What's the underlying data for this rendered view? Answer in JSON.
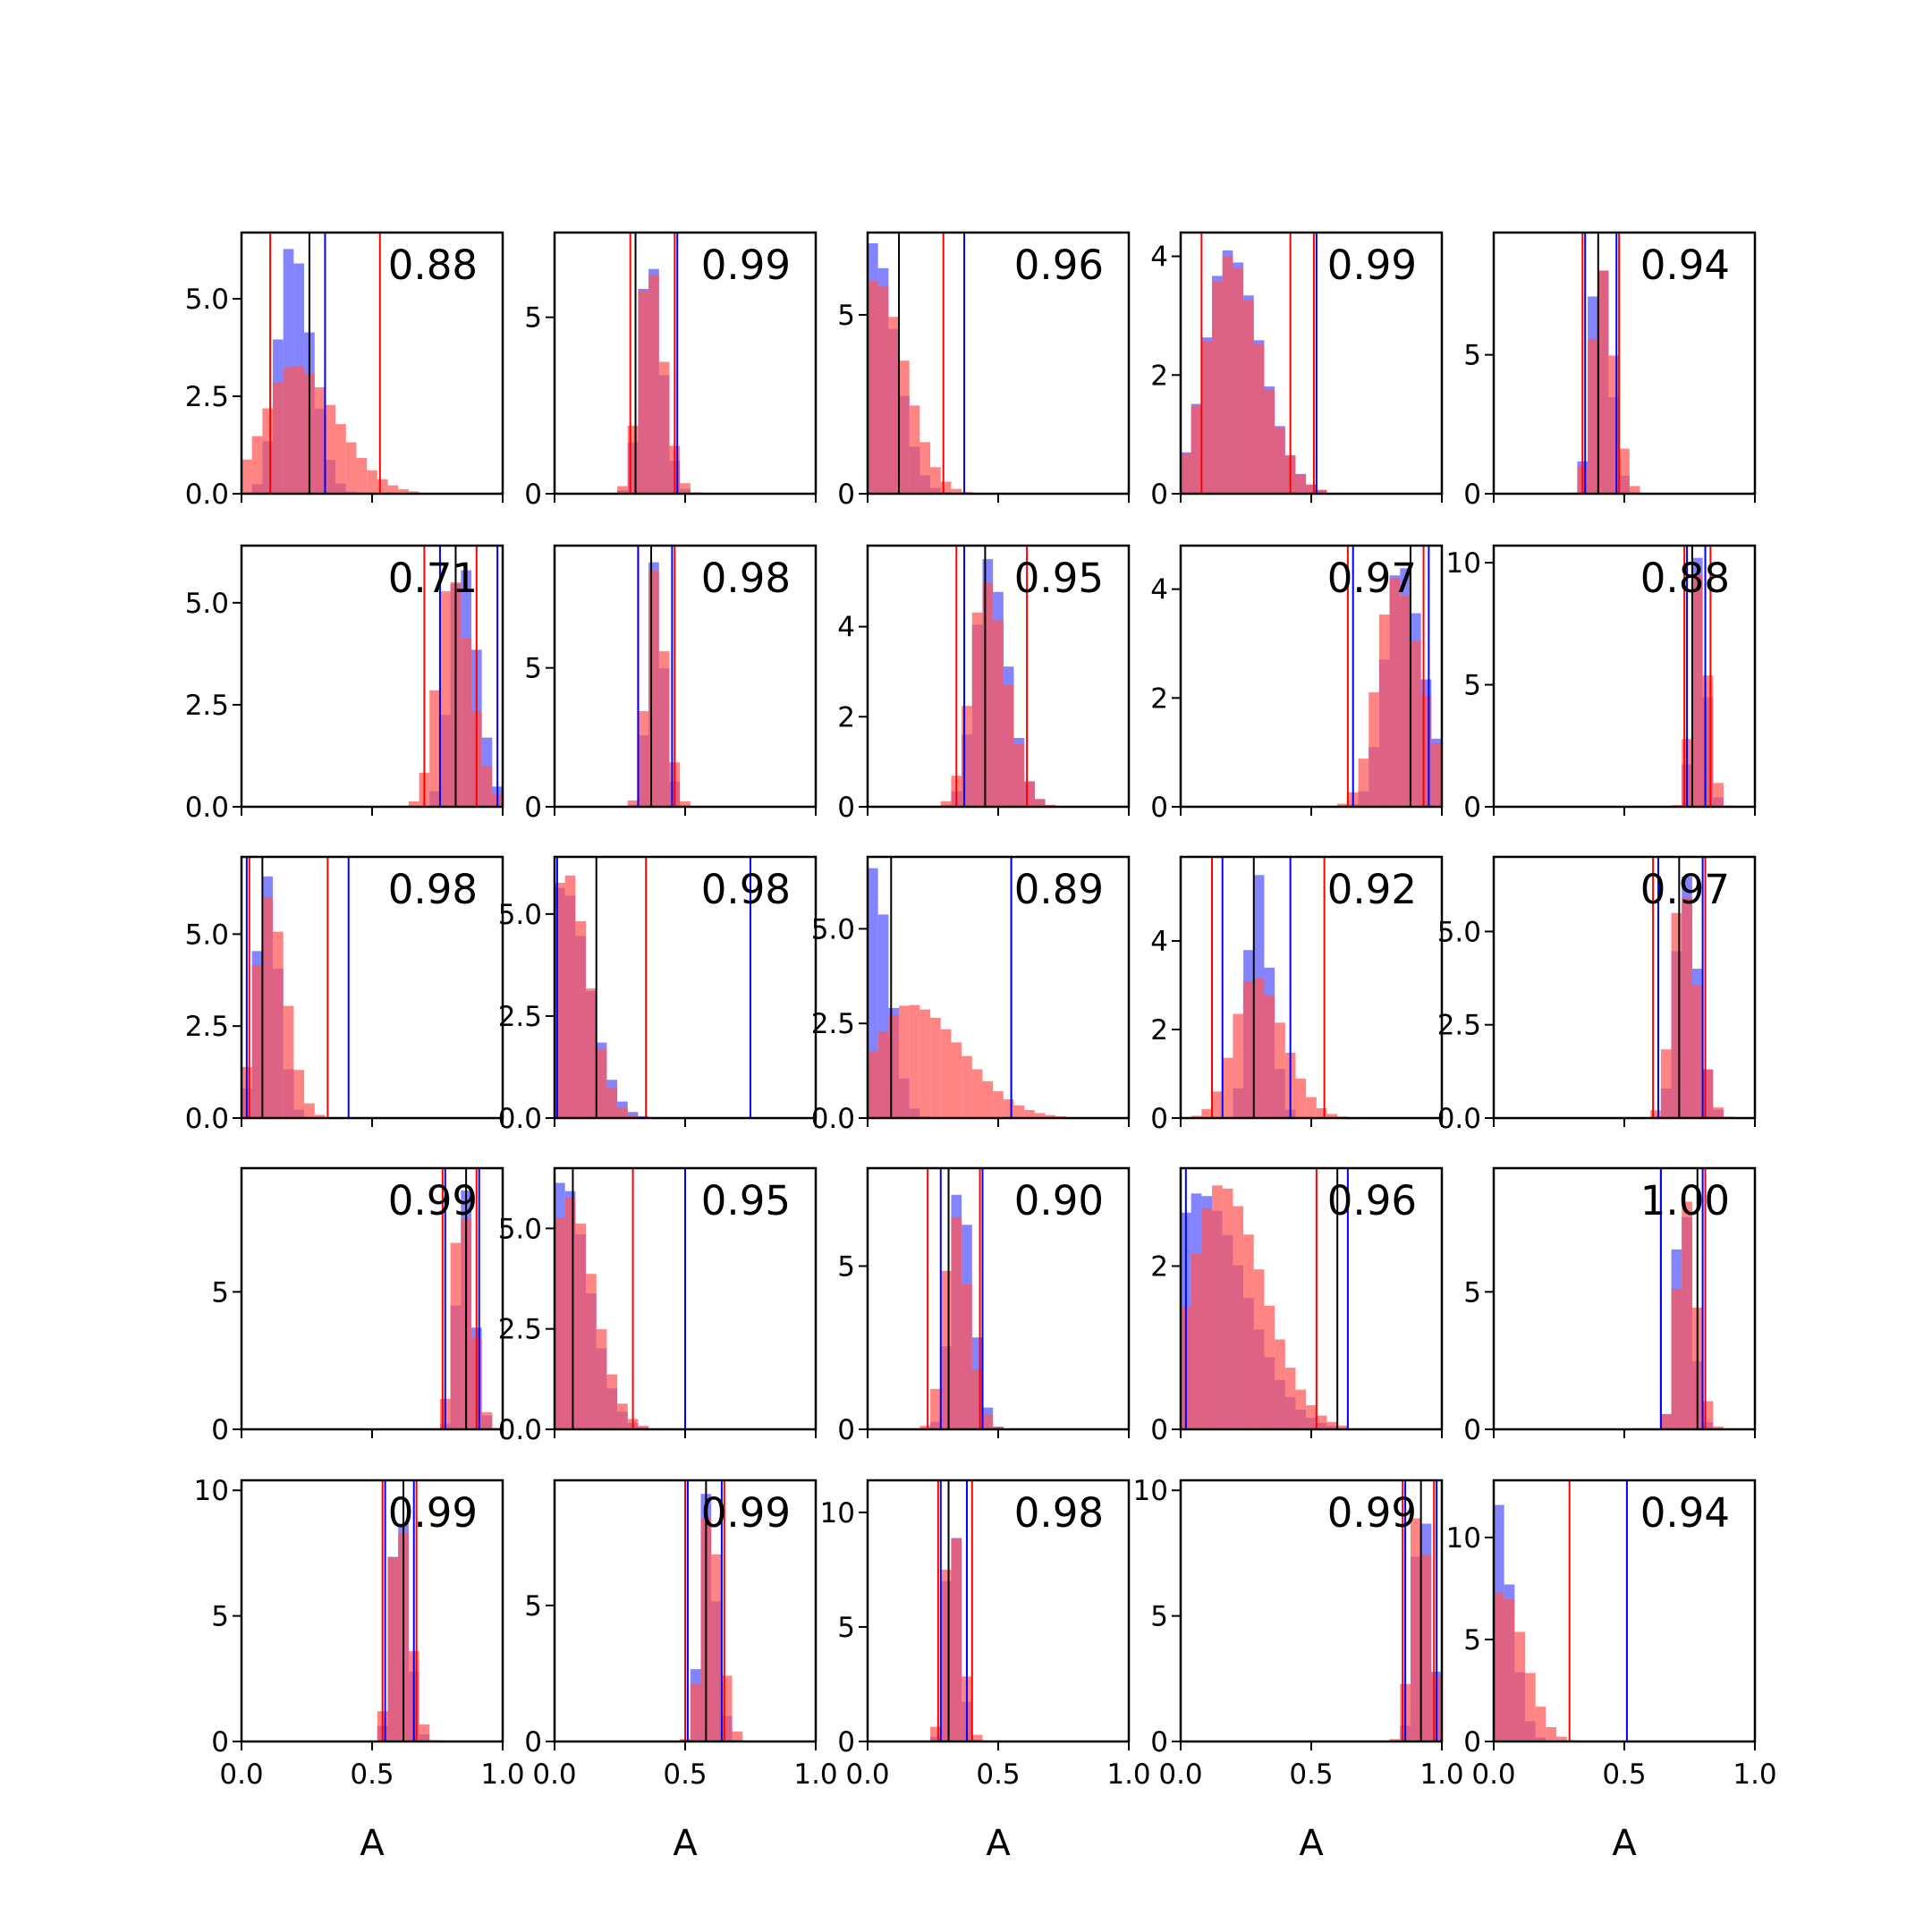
{
  "chart_data": {
    "type": "histogram-grid",
    "rows": 5,
    "cols": 5,
    "xlabel": "A",
    "xlim": [
      0,
      1
    ],
    "xticks": [
      0.0,
      0.5,
      1.0
    ],
    "xtick_labels": [
      "0.0",
      "0.5",
      "1.0"
    ],
    "colors": {
      "blue": "#5555ff",
      "red": "#ff5555",
      "blue_line": "#0000ff",
      "red_line": "#ff0000",
      "black_line": "#000000"
    },
    "series_legend": [],
    "panels": [
      {
        "r": "0.88",
        "ymax": 6.7,
        "yticks": [
          0,
          2.5,
          5.0
        ],
        "ytick_labels": [
          "0.0",
          "2.5",
          "5.0"
        ],
        "blue": {
          "mode": 0.19,
          "width": 0.06,
          "peak": 6.4
        },
        "red": {
          "mode": 0.2,
          "width": 0.13,
          "peak": 3.3
        },
        "red_lines": [
          0.11,
          0.53
        ],
        "blue_lines": [
          0.32
        ],
        "black_line": 0.26
      },
      {
        "r": "0.99",
        "ymax": 7.4,
        "yticks": [
          0,
          5
        ],
        "ytick_labels": [
          "0",
          "5"
        ],
        "blue": {
          "mode": 0.36,
          "width": 0.04,
          "peak": 6.9
        },
        "red": {
          "mode": 0.36,
          "width": 0.045,
          "peak": 6.6
        },
        "red_lines": [
          0.29,
          0.46
        ],
        "blue_lines": [
          0.47
        ],
        "black_line": 0.31
      },
      {
        "r": "0.96",
        "ymax": 7.3,
        "yticks": [
          0,
          5
        ],
        "ytick_labels": [
          "0",
          "5"
        ],
        "blue": {
          "mode": 0.02,
          "width": 0.07,
          "peak": 7.0
        },
        "red": {
          "mode": 0.03,
          "width": 0.09,
          "peak": 6.0
        },
        "red_lines": [
          0.29
        ],
        "blue_lines": [
          0.37
        ],
        "black_line": 0.12
      },
      {
        "r": "0.99",
        "ymax": 4.4,
        "yticks": [
          0,
          2,
          4
        ],
        "ytick_labels": [
          "0",
          "2",
          "4"
        ],
        "blue": {
          "mode": 0.18,
          "width": 0.1,
          "peak": 4.1
        },
        "red": {
          "mode": 0.18,
          "width": 0.1,
          "peak": 4.0
        },
        "red_lines": [
          0.08,
          0.42,
          0.51
        ],
        "blue_lines": [
          0.52
        ],
        "black_line": null
      },
      {
        "r": "0.94",
        "ymax": 9.4,
        "yticks": [
          0,
          5
        ],
        "ytick_labels": [
          "0",
          "5"
        ],
        "blue": {
          "mode": 0.4,
          "width": 0.035,
          "peak": 8.9
        },
        "red": {
          "mode": 0.41,
          "width": 0.04,
          "peak": 8.2
        },
        "red_lines": [
          0.34,
          0.48
        ],
        "blue_lines": [
          0.35,
          0.47
        ],
        "black_line": 0.4
      },
      {
        "r": "0.71",
        "ymax": 6.4,
        "yticks": [
          0,
          2.5,
          5.0
        ],
        "ytick_labels": [
          "0.0",
          "2.5",
          "5.0"
        ],
        "blue": {
          "mode": 0.84,
          "width": 0.05,
          "peak": 6.1
        },
        "red": {
          "mode": 0.8,
          "width": 0.06,
          "peak": 5.7
        },
        "red_lines": [
          0.7,
          0.9
        ],
        "blue_lines": [
          0.76,
          0.98
        ],
        "black_line": 0.82
      },
      {
        "r": "0.98",
        "ymax": 9.4,
        "yticks": [
          0,
          5
        ],
        "ytick_labels": [
          "0",
          "5"
        ],
        "blue": {
          "mode": 0.38,
          "width": 0.03,
          "peak": 8.8
        },
        "red": {
          "mode": 0.38,
          "width": 0.035,
          "peak": 8.5
        },
        "red_lines": [
          0.32,
          0.46
        ],
        "blue_lines": [
          0.32,
          0.45
        ],
        "black_line": 0.37
      },
      {
        "r": "0.95",
        "ymax": 5.8,
        "yticks": [
          0,
          2,
          4
        ],
        "ytick_labels": [
          "0",
          "2",
          "4"
        ],
        "blue": {
          "mode": 0.46,
          "width": 0.06,
          "peak": 5.5
        },
        "red": {
          "mode": 0.45,
          "width": 0.065,
          "peak": 5.0
        },
        "red_lines": [
          0.34,
          0.61
        ],
        "blue_lines": [
          0.37
        ],
        "black_line": 0.45
      },
      {
        "r": "0.97",
        "ymax": 4.8,
        "yticks": [
          0,
          2,
          4
        ],
        "ytick_labels": [
          "0",
          "2",
          "4"
        ],
        "blue": {
          "mode": 0.84,
          "width": 0.07,
          "peak": 4.5
        },
        "red": {
          "mode": 0.82,
          "width": 0.08,
          "peak": 4.2
        },
        "red_lines": [
          0.64,
          0.93
        ],
        "blue_lines": [
          0.66,
          0.95
        ],
        "black_line": 0.88
      },
      {
        "r": "0.88",
        "ymax": 10.7,
        "yticks": [
          0,
          5,
          10
        ],
        "ytick_labels": [
          "0",
          "5",
          "10"
        ],
        "blue": {
          "mode": 0.78,
          "width": 0.025,
          "peak": 10.2
        },
        "red": {
          "mode": 0.78,
          "width": 0.03,
          "peak": 9.5
        },
        "red_lines": [
          0.73,
          0.83
        ],
        "blue_lines": [
          0.74,
          0.81
        ],
        "black_line": 0.76
      },
      {
        "r": "0.98",
        "ymax": 7.1,
        "yticks": [
          0,
          2.5,
          5.0
        ],
        "ytick_labels": [
          "0.0",
          "2.5",
          "5.0"
        ],
        "blue": {
          "mode": 0.09,
          "width": 0.04,
          "peak": 6.7
        },
        "red": {
          "mode": 0.1,
          "width": 0.055,
          "peak": 6.0
        },
        "red_lines": [
          0.03,
          0.33
        ],
        "blue_lines": [
          0.02,
          0.41
        ],
        "black_line": 0.08
      },
      {
        "r": "0.98",
        "ymax": 6.4,
        "yticks": [
          0,
          2.5,
          5.0
        ],
        "ytick_labels": [
          "0.0",
          "2.5",
          "5.0"
        ],
        "blue": {
          "mode": 0.03,
          "width": 0.08,
          "peak": 5.7
        },
        "red": {
          "mode": 0.04,
          "width": 0.07,
          "peak": 6.1
        },
        "red_lines": [
          0.35
        ],
        "blue_lines": [
          0.01,
          0.75
        ],
        "black_line": 0.16
      },
      {
        "r": "0.89",
        "ymax": 6.9,
        "yticks": [
          0,
          2.5,
          5.0
        ],
        "ytick_labels": [
          "0.0",
          "2.5",
          "5.0"
        ],
        "blue": {
          "mode": 0.02,
          "width": 0.05,
          "peak": 6.6
        },
        "red": {
          "mode": 0.16,
          "width": 0.16,
          "peak": 3.0
        },
        "red_lines": [
          0.55
        ],
        "blue_lines": [
          0.55
        ],
        "black_line": 0.09
      },
      {
        "r": "0.92",
        "ymax": 5.9,
        "yticks": [
          0,
          2,
          4
        ],
        "ytick_labels": [
          "0",
          "2",
          "4"
        ],
        "blue": {
          "mode": 0.29,
          "width": 0.04,
          "peak": 5.6
        },
        "red": {
          "mode": 0.28,
          "width": 0.09,
          "peak": 3.2
        },
        "red_lines": [
          0.12,
          0.55
        ],
        "blue_lines": [
          0.16,
          0.42
        ],
        "black_line": 0.28
      },
      {
        "r": "0.97",
        "ymax": 7.0,
        "yticks": [
          0,
          2.5,
          5.0
        ],
        "ytick_labels": [
          "0.0",
          "2.5",
          "5.0"
        ],
        "blue": {
          "mode": 0.73,
          "width": 0.04,
          "peak": 6.6
        },
        "red": {
          "mode": 0.72,
          "width": 0.045,
          "peak": 6.3
        },
        "red_lines": [
          0.61,
          0.81
        ],
        "blue_lines": [
          0.63,
          0.8
        ],
        "black_line": 0.71
      },
      {
        "r": "0.99",
        "ymax": 9.5,
        "yticks": [
          0,
          5
        ],
        "ytick_labels": [
          "0",
          "5"
        ],
        "blue": {
          "mode": 0.85,
          "width": 0.03,
          "peak": 9.0
        },
        "red": {
          "mode": 0.84,
          "width": 0.035,
          "peak": 8.5
        },
        "red_lines": [
          0.77,
          0.9
        ],
        "blue_lines": [
          0.78,
          0.91
        ],
        "black_line": 0.86
      },
      {
        "r": "0.95",
        "ymax": 6.5,
        "yticks": [
          0,
          2.5,
          5.0
        ],
        "ytick_labels": [
          "0.0",
          "2.5",
          "5.0"
        ],
        "blue": {
          "mode": 0.03,
          "width": 0.08,
          "peak": 6.2
        },
        "red": {
          "mode": 0.05,
          "width": 0.08,
          "peak": 5.8
        },
        "red_lines": [
          0.3
        ],
        "blue_lines": [
          0.5
        ],
        "black_line": 0.07
      },
      {
        "r": "0.90",
        "ymax": 8.0,
        "yticks": [
          0,
          5
        ],
        "ytick_labels": [
          "0",
          "5"
        ],
        "blue": {
          "mode": 0.35,
          "width": 0.04,
          "peak": 7.5
        },
        "red": {
          "mode": 0.33,
          "width": 0.045,
          "peak": 6.6
        },
        "red_lines": [
          0.23,
          0.43
        ],
        "blue_lines": [
          0.28,
          0.44
        ],
        "black_line": 0.31
      },
      {
        "r": "0.96",
        "ymax": 3.2,
        "yticks": [
          0,
          2
        ],
        "ytick_labels": [
          "0",
          "2"
        ],
        "blue": {
          "mode": 0.07,
          "width": 0.14,
          "peak": 2.9
        },
        "red": {
          "mode": 0.15,
          "width": 0.13,
          "peak": 3.0
        },
        "red_lines": [
          0.52
        ],
        "blue_lines": [
          0.02,
          0.64
        ],
        "black_line": 0.6
      },
      {
        "r": "1.00",
        "ymax": 9.5,
        "yticks": [
          0,
          5
        ],
        "ytick_labels": [
          "0",
          "5"
        ],
        "blue": {
          "mode": 0.72,
          "width": 0.03,
          "peak": 8.9
        },
        "red": {
          "mode": 0.73,
          "width": 0.035,
          "peak": 8.5
        },
        "red_lines": [
          0.64,
          0.81
        ],
        "blue_lines": [
          0.64,
          0.8
        ],
        "black_line": 0.78
      },
      {
        "r": "0.99",
        "ymax": 10.4,
        "yticks": [
          0,
          5,
          10
        ],
        "ytick_labels": [
          "0",
          "5",
          "10"
        ],
        "blue": {
          "mode": 0.6,
          "width": 0.03,
          "peak": 10.0
        },
        "red": {
          "mode": 0.6,
          "width": 0.035,
          "peak": 9.2
        },
        "red_lines": [
          0.54,
          0.67
        ],
        "blue_lines": [
          0.55,
          0.66
        ],
        "black_line": 0.62
      },
      {
        "r": "0.99",
        "ymax": 9.6,
        "yticks": [
          0,
          5
        ],
        "ytick_labels": [
          "0",
          "5"
        ],
        "blue": {
          "mode": 0.58,
          "width": 0.03,
          "peak": 9.1
        },
        "red": {
          "mode": 0.59,
          "width": 0.035,
          "peak": 8.7
        },
        "red_lines": [
          0.5,
          0.65
        ],
        "blue_lines": [
          0.51,
          0.64
        ],
        "black_line": 0.58
      },
      {
        "r": "0.98",
        "ymax": 11.4,
        "yticks": [
          0,
          5,
          10
        ],
        "ytick_labels": [
          "0",
          "5",
          "10"
        ],
        "blue": {
          "mode": 0.32,
          "width": 0.025,
          "peak": 10.9
        },
        "red": {
          "mode": 0.32,
          "width": 0.03,
          "peak": 10.2
        },
        "red_lines": [
          0.27,
          0.4
        ],
        "blue_lines": [
          0.28,
          0.38
        ],
        "black_line": 0.31
      },
      {
        "r": "0.99",
        "ymax": 10.4,
        "yticks": [
          0,
          5,
          10
        ],
        "ytick_labels": [
          "0",
          "5",
          "10"
        ],
        "blue": {
          "mode": 0.92,
          "width": 0.03,
          "peak": 10.0
        },
        "red": {
          "mode": 0.91,
          "width": 0.035,
          "peak": 9.4
        },
        "red_lines": [
          0.85,
          0.97
        ],
        "blue_lines": [
          0.86,
          0.98
        ],
        "black_line": 0.92
      },
      {
        "r": "0.94",
        "ymax": 12.8,
        "yticks": [
          0,
          5,
          10
        ],
        "ytick_labels": [
          "0",
          "5",
          "10"
        ],
        "blue": {
          "mode": 0.0,
          "width": 0.05,
          "peak": 12.2
        },
        "red": {
          "mode": 0.03,
          "width": 0.07,
          "peak": 7.4
        },
        "red_lines": [
          0.29
        ],
        "blue_lines": [
          0.51
        ],
        "black_line": null
      }
    ]
  }
}
